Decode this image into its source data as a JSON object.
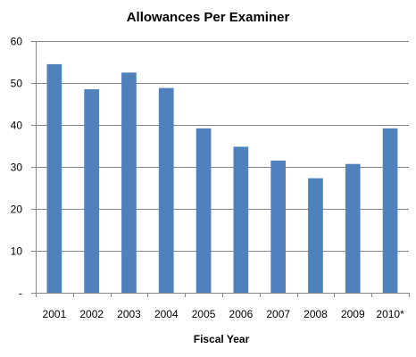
{
  "chart_data": {
    "type": "bar",
    "title": "Allowances Per Examiner",
    "xlabel": "Fiscal Year",
    "ylabel": "",
    "categories": [
      "2001",
      "2002",
      "2003",
      "2004",
      "2005",
      "2006",
      "2007",
      "2008",
      "2009",
      "2010*"
    ],
    "values": [
      54.5,
      48.5,
      52.5,
      48.8,
      39.2,
      34.8,
      31.5,
      27.3,
      30.7,
      39.2
    ],
    "ylim": [
      0,
      60
    ],
    "yticks": [
      0,
      10,
      20,
      30,
      40,
      50,
      60
    ],
    "ytick_labels": [
      "-",
      "10",
      "20",
      "30",
      "40",
      "50",
      "60"
    ],
    "grid": true,
    "legend": "none",
    "bar_color": "#4F81BD"
  }
}
